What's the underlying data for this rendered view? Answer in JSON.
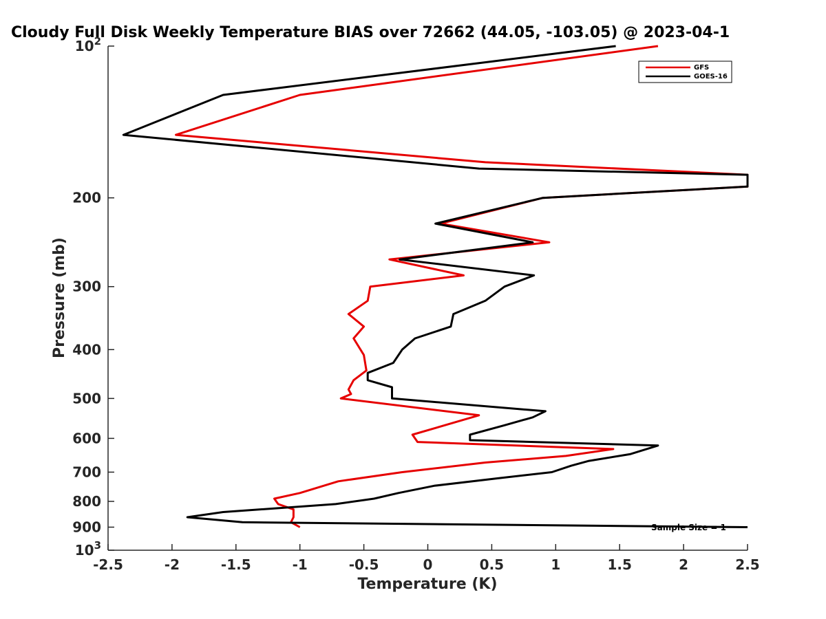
{
  "chart_data": {
    "type": "line",
    "title": "Cloudy Full Disk Weekly Temperature BIAS over 72662 (44.05, -103.05) @ 2023-04-1",
    "xlabel": "Temperature (K)",
    "ylabel": "Pressure (mb)",
    "xlim": [
      -2.5,
      2.5
    ],
    "ylim": [
      100,
      1000
    ],
    "y_scale": "log",
    "y_reversed": true,
    "x_ticks": [
      "-2.5",
      "-2",
      "-1.5",
      "-1",
      "-0.5",
      "0",
      "0.5",
      "1",
      "1.5",
      "2",
      "2.5"
    ],
    "y_ticks": [
      {
        "value": 100,
        "base": "10",
        "exp": "2"
      },
      {
        "value": 200,
        "label": "200"
      },
      {
        "value": 300,
        "label": "300"
      },
      {
        "value": 400,
        "label": "400"
      },
      {
        "value": 500,
        "label": "500"
      },
      {
        "value": 600,
        "label": "600"
      },
      {
        "value": 700,
        "label": "700"
      },
      {
        "value": 800,
        "label": "800"
      },
      {
        "value": 900,
        "label": "900"
      },
      {
        "value": 1000,
        "base": "10",
        "exp": "3"
      }
    ],
    "legend_position": "top-right",
    "annotation": "Sample Size = 1",
    "series": [
      {
        "name": "GFS",
        "color": "#e60000",
        "points": [
          [
            1.8,
            100
          ],
          [
            -1.0,
            125
          ],
          [
            -1.97,
            150
          ],
          [
            0.45,
            170
          ],
          [
            2.5,
            180
          ],
          [
            2.5,
            190
          ],
          [
            0.9,
            200
          ],
          [
            0.1,
            225
          ],
          [
            0.95,
            245
          ],
          [
            -0.3,
            265
          ],
          [
            0.28,
            285
          ],
          [
            -0.45,
            300
          ],
          [
            -0.47,
            320
          ],
          [
            -0.62,
            340
          ],
          [
            -0.5,
            360
          ],
          [
            -0.58,
            380
          ],
          [
            -0.5,
            410
          ],
          [
            -0.48,
            440
          ],
          [
            -0.58,
            460
          ],
          [
            -0.62,
            480
          ],
          [
            -0.6,
            490
          ],
          [
            -0.68,
            500
          ],
          [
            0.4,
            540
          ],
          [
            -0.12,
            590
          ],
          [
            -0.08,
            610
          ],
          [
            1.45,
            630
          ],
          [
            1.08,
            650
          ],
          [
            0.45,
            670
          ],
          [
            -0.2,
            700
          ],
          [
            -0.7,
            730
          ],
          [
            -1.0,
            770
          ],
          [
            -1.2,
            790
          ],
          [
            -1.17,
            810
          ],
          [
            -1.05,
            830
          ],
          [
            -1.05,
            860
          ],
          [
            -1.07,
            880
          ],
          [
            -1.0,
            900
          ]
        ]
      },
      {
        "name": "GOES-16",
        "color": "#000000",
        "points": [
          [
            1.47,
            100
          ],
          [
            -1.6,
            125
          ],
          [
            -2.38,
            150
          ],
          [
            0.4,
            175
          ],
          [
            2.5,
            180
          ],
          [
            2.5,
            190
          ],
          [
            0.9,
            200
          ],
          [
            0.06,
            225
          ],
          [
            0.82,
            245
          ],
          [
            -0.22,
            265
          ],
          [
            0.83,
            285
          ],
          [
            0.6,
            300
          ],
          [
            0.45,
            320
          ],
          [
            0.2,
            340
          ],
          [
            0.18,
            360
          ],
          [
            -0.1,
            380
          ],
          [
            -0.2,
            400
          ],
          [
            -0.27,
            425
          ],
          [
            -0.47,
            445
          ],
          [
            -0.47,
            460
          ],
          [
            -0.28,
            475
          ],
          [
            -0.28,
            500
          ],
          [
            0.92,
            530
          ],
          [
            0.82,
            545
          ],
          [
            0.6,
            565
          ],
          [
            0.33,
            590
          ],
          [
            0.33,
            605
          ],
          [
            1.8,
            620
          ],
          [
            1.58,
            645
          ],
          [
            1.26,
            665
          ],
          [
            1.12,
            680
          ],
          [
            0.97,
            700
          ],
          [
            0.55,
            720
          ],
          [
            0.05,
            745
          ],
          [
            -0.23,
            770
          ],
          [
            -0.42,
            790
          ],
          [
            -0.72,
            810
          ],
          [
            -1.6,
            840
          ],
          [
            -1.88,
            860
          ],
          [
            -1.45,
            880
          ],
          [
            2.5,
            900
          ]
        ]
      }
    ]
  }
}
